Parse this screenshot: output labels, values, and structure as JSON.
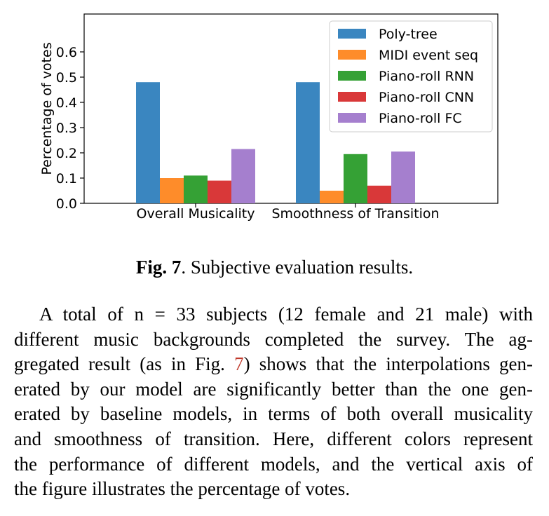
{
  "chart_data": {
    "type": "bar",
    "categories": [
      "Overall Musicality",
      "Smoothness of Transition"
    ],
    "series": [
      {
        "name": "Poly-tree",
        "color": "#3a86c0",
        "values": [
          0.48,
          0.48
        ]
      },
      {
        "name": "MIDI event seq",
        "color": "#fe8c2a",
        "values": [
          0.1,
          0.05
        ]
      },
      {
        "name": "Piano-roll RNN",
        "color": "#35a135",
        "values": [
          0.11,
          0.195
        ]
      },
      {
        "name": "Piano-roll CNN",
        "color": "#d93839",
        "values": [
          0.09,
          0.07
        ]
      },
      {
        "name": "Piano-roll FC",
        "color": "#a57fce",
        "values": [
          0.215,
          0.205
        ]
      }
    ],
    "ylabel": "Percentage of votes",
    "yticks": [
      "0.0",
      "0.1",
      "0.2",
      "0.3",
      "0.4",
      "0.5",
      "0.6"
    ],
    "ylim": [
      0,
      0.75
    ],
    "legend": "top-right",
    "grid": false
  },
  "caption": {
    "label": "Fig. 7",
    "text": ". Subjective evaluation results."
  },
  "paragraph": {
    "lines": [
      "A total of n = 33 subjects (12 female and 21 male) with",
      "different music backgrounds completed the survey.  The ag-",
      "gregated result (as in Fig. ",
      "7",
      ") shows that the interpolations gen-",
      "erated by our model are significantly better than the one gen-",
      "erated by baseline models, in terms of both overall musicality",
      "and smoothness of transition. Here, different colors represent",
      "the performance of different models, and the vertical axis of",
      "the figure illustrates the percentage of votes."
    ]
  },
  "colors": {
    "reference": "#c0392b"
  }
}
